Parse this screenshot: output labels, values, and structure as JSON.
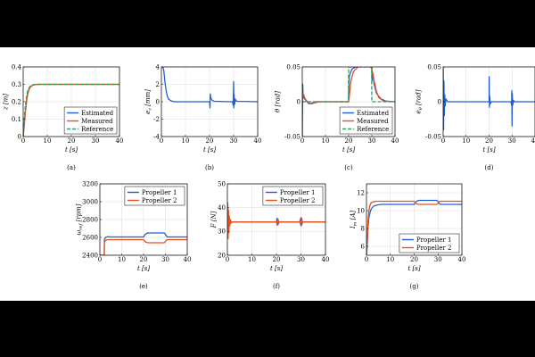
{
  "figure": {
    "background": "#ffffff",
    "letterbox": "#000000"
  },
  "colors": {
    "blue": "#1f5fd6",
    "red": "#e8521c",
    "green": "#2e9c5c",
    "grid": "#d9d9d9"
  },
  "chart_data": [
    {
      "id": "a",
      "caption": "(a)",
      "type": "line",
      "xlabel": "t [s]",
      "ylabel": "z [m]",
      "xlim": [
        0,
        40
      ],
      "ylim": [
        0,
        0.4
      ],
      "xticks": [
        0,
        10,
        20,
        30,
        40
      ],
      "xtick_labels": [
        "0",
        "10",
        "20",
        "30",
        "40"
      ],
      "yticks": [
        0,
        0.1,
        0.2,
        0.3,
        0.4
      ],
      "ytick_labels": [
        "0",
        "0.1",
        "0.2",
        "0.3",
        "0.4"
      ],
      "legend": "bottom-right",
      "grid": true,
      "series": [
        {
          "name": "Estimated",
          "color": "blue",
          "dash": "",
          "x": [
            0,
            0.5,
            1,
            1.5,
            2,
            2.5,
            3,
            4,
            5,
            6,
            8,
            10,
            40
          ],
          "y": [
            0,
            0.08,
            0.16,
            0.22,
            0.255,
            0.275,
            0.287,
            0.296,
            0.299,
            0.3,
            0.3,
            0.3,
            0.3
          ]
        },
        {
          "name": "Measured",
          "color": "red",
          "dash": "",
          "x": [
            0,
            0.5,
            1,
            1.5,
            2,
            2.5,
            3,
            4,
            5,
            6,
            8,
            10,
            40
          ],
          "y": [
            0,
            0.07,
            0.15,
            0.21,
            0.25,
            0.272,
            0.285,
            0.295,
            0.299,
            0.3,
            0.3,
            0.3,
            0.3
          ]
        },
        {
          "name": "Reference",
          "color": "green",
          "dash": "4,2",
          "x": [
            0,
            0.5,
            1,
            1.5,
            2,
            3,
            4,
            5,
            6,
            8,
            40
          ],
          "y": [
            0,
            0.11,
            0.19,
            0.24,
            0.27,
            0.291,
            0.297,
            0.299,
            0.3,
            0.3,
            0.3
          ]
        }
      ]
    },
    {
      "id": "b",
      "caption": "(b)",
      "type": "line",
      "xlabel": "t [s]",
      "ylabel": "e_z [mm]",
      "xlim": [
        0,
        40
      ],
      "ylim": [
        -4,
        4
      ],
      "xticks": [
        0,
        10,
        20,
        30,
        40
      ],
      "xtick_labels": [
        "0",
        "10",
        "20",
        "30",
        "40"
      ],
      "yticks": [
        -4,
        -2,
        0,
        2,
        4
      ],
      "ytick_labels": [
        "-4",
        "-2",
        "0",
        "2",
        "4"
      ],
      "legend": "none",
      "grid": true,
      "series": [
        {
          "name": "e_z",
          "color": "blue",
          "dash": "",
          "x": [
            0,
            0.3,
            0.6,
            1,
            1.5,
            2,
            2.5,
            3,
            4,
            5,
            6,
            20,
            20.2,
            20.3,
            20.6,
            21,
            21.5,
            22,
            29.5,
            29.8,
            30,
            30.1,
            30.2,
            30.4,
            30.7,
            31,
            31.5,
            40
          ],
          "y": [
            4,
            4,
            4,
            3.6,
            2.2,
            1.2,
            0.6,
            0.3,
            0.1,
            0.03,
            0,
            0,
            -0.7,
            0.9,
            0.4,
            0.2,
            0.1,
            0.05,
            0,
            -0.4,
            2.3,
            -0.7,
            0.8,
            -0.3,
            0.3,
            0.1,
            0.05,
            0
          ]
        }
      ]
    },
    {
      "id": "c",
      "caption": "(c)",
      "type": "line",
      "xlabel": "t [s]",
      "ylabel": "θ [rad]",
      "xlim": [
        0,
        40
      ],
      "ylim": [
        -0.05,
        0.05
      ],
      "xticks": [
        0,
        10,
        20,
        30,
        40
      ],
      "xtick_labels": [
        "0",
        "10",
        "20",
        "30",
        "40"
      ],
      "yticks": [
        -0.05,
        0,
        0.05
      ],
      "ytick_labels": [
        "-0.05",
        "0",
        "0.05"
      ],
      "legend": "bottom-right",
      "grid": true,
      "series": [
        {
          "name": "Estimated",
          "color": "blue",
          "dash": "",
          "x": [
            0,
            0.2,
            0.4,
            0.6,
            1,
            1.5,
            2,
            3,
            4,
            5,
            6,
            8,
            10,
            12,
            14,
            16,
            18,
            20,
            20.1,
            20.3,
            20.8,
            21.5,
            23,
            25,
            29.5,
            29.8,
            30,
            30.1,
            30.2,
            30.6,
            31,
            32,
            34,
            36,
            40
          ],
          "y": [
            -0.05,
            0.025,
            0.005,
            0.01,
            0.004,
            0.002,
            0,
            -0.003,
            -0.002,
            -0.001,
            0,
            0,
            0,
            0,
            0,
            0,
            0,
            0,
            0.02,
            0.037,
            0.042,
            0.047,
            0.05,
            0.051,
            0.051,
            0.048,
            0.055,
            0.03,
            0.042,
            0.035,
            0.025,
            0.012,
            0.004,
            0.001,
            0
          ]
        },
        {
          "name": "Measured",
          "color": "red",
          "dash": "",
          "x": [
            0,
            0.3,
            0.6,
            1,
            1.5,
            2,
            3,
            4,
            6,
            8,
            20,
            20.3,
            21,
            22,
            24,
            29.5,
            30,
            30.5,
            31,
            32,
            33,
            35,
            40
          ],
          "y": [
            0,
            0.012,
            0.01,
            0.006,
            0.003,
            0.001,
            -0.002,
            -0.003,
            -0.001,
            0,
            0,
            0.008,
            0.03,
            0.043,
            0.05,
            0.051,
            0.046,
            0.04,
            0.03,
            0.015,
            0.006,
            0.001,
            0
          ]
        },
        {
          "name": "Reference",
          "color": "green",
          "dash": "4,2",
          "x": [
            0,
            19.9,
            20,
            29.9,
            30,
            40
          ],
          "y": [
            0,
            0,
            0.05,
            0.05,
            0,
            0
          ]
        }
      ]
    },
    {
      "id": "d",
      "caption": "(d)",
      "type": "line",
      "xlabel": "t [s]",
      "ylabel": "e_θ [rad]",
      "xlim": [
        0,
        40
      ],
      "ylim": [
        -0.05,
        0.05
      ],
      "xticks": [
        0,
        10,
        20,
        30,
        40
      ],
      "xtick_labels": [
        "0",
        "10",
        "20",
        "30",
        "40"
      ],
      "yticks": [
        -0.05,
        0,
        0.05
      ],
      "ytick_labels": [
        "-0.05",
        "0",
        "0.05"
      ],
      "legend": "none",
      "grid": true,
      "series": [
        {
          "name": "e_θ",
          "color": "blue",
          "dash": "",
          "x": [
            0,
            0.2,
            0.35,
            0.5,
            0.7,
            0.9,
            1.2,
            1.6,
            2,
            3,
            20,
            20.05,
            20.15,
            20.3,
            20.5,
            21,
            29.5,
            29.8,
            29.9,
            30,
            30.1,
            30.3,
            30.6,
            31,
            40
          ],
          "y": [
            0.05,
            -0.04,
            0.03,
            -0.02,
            0.01,
            -0.006,
            0.004,
            0.002,
            0,
            0,
            0,
            0.036,
            -0.008,
            0.008,
            -0.003,
            0,
            0,
            -0.005,
            0.016,
            -0.035,
            0.012,
            -0.005,
            0.002,
            0,
            0
          ]
        }
      ]
    },
    {
      "id": "e",
      "caption": "(e)",
      "type": "line",
      "xlabel": "t [s]",
      "ylabel": "ω_ref [rpm]",
      "xlim": [
        0,
        40
      ],
      "ylim": [
        2400,
        3200
      ],
      "xticks": [
        0,
        10,
        20,
        30,
        40
      ],
      "xtick_labels": [
        "0",
        "10",
        "20",
        "30",
        "40"
      ],
      "yticks": [
        2400,
        2600,
        2800,
        3000,
        3200
      ],
      "ytick_labels": [
        "2400",
        "2600",
        "2800",
        "3000",
        "3200"
      ],
      "legend": "top-right",
      "grid": true,
      "series": [
        {
          "name": "Propeller 1",
          "color": "blue",
          "dash": "",
          "x": [
            0,
            2,
            2.1,
            2.6,
            3.5,
            5,
            20,
            20.5,
            21,
            22,
            29.5,
            30,
            30.5,
            31,
            40
          ],
          "y": [
            2400,
            2400,
            2580,
            2600,
            2607,
            2605,
            2605,
            2625,
            2640,
            2650,
            2650,
            2635,
            2615,
            2605,
            2605
          ]
        },
        {
          "name": "Propeller 2",
          "color": "red",
          "dash": "",
          "x": [
            0,
            2,
            2.1,
            2.6,
            3.5,
            5,
            20,
            20.5,
            21,
            22,
            29.5,
            30,
            30.5,
            31,
            40
          ],
          "y": [
            2400,
            2400,
            2550,
            2568,
            2575,
            2575,
            2575,
            2560,
            2548,
            2540,
            2540,
            2555,
            2570,
            2575,
            2575
          ]
        }
      ]
    },
    {
      "id": "f",
      "caption": "(f)",
      "type": "line",
      "xlabel": "t [s]",
      "ylabel": "F [N]",
      "xlim": [
        0,
        40
      ],
      "ylim": [
        20,
        50
      ],
      "xticks": [
        0,
        10,
        20,
        30,
        40
      ],
      "xtick_labels": [
        "0",
        "10",
        "20",
        "30",
        "40"
      ],
      "yticks": [
        20,
        30,
        40,
        50
      ],
      "ytick_labels": [
        "20",
        "30",
        "40",
        "50"
      ],
      "legend": "top-right",
      "grid": true,
      "series": [
        {
          "name": "Propeller 1",
          "color": "blue",
          "dash": "",
          "x": [
            0,
            0.15,
            0.3,
            0.45,
            0.6,
            0.8,
            1,
            1.3,
            1.6,
            2,
            20,
            20.3,
            20.6,
            21,
            29.5,
            30,
            30.3,
            30.6,
            40
          ],
          "y": [
            34,
            41,
            28,
            38,
            30,
            36,
            32.5,
            34.8,
            33.6,
            34,
            34,
            35.5,
            32.8,
            34,
            34,
            35.8,
            32.6,
            34,
            34
          ]
        },
        {
          "name": "Propeller 2",
          "color": "red",
          "dash": "",
          "x": [
            0,
            0.15,
            0.3,
            0.45,
            0.6,
            0.8,
            1,
            1.3,
            1.6,
            2,
            20,
            20.3,
            20.6,
            21,
            29.5,
            30,
            30.3,
            30.6,
            40
          ],
          "y": [
            34,
            42,
            27,
            39,
            29.5,
            36.5,
            32.2,
            35,
            33.5,
            34,
            34,
            32.6,
            35.3,
            34,
            34,
            32.4,
            35.6,
            34,
            34
          ]
        }
      ]
    },
    {
      "id": "g",
      "caption": "(g)",
      "type": "line",
      "xlabel": "t [s]",
      "ylabel": "I_m [A]",
      "xlim": [
        0,
        40
      ],
      "ylim": [
        5,
        13
      ],
      "xticks": [
        0,
        10,
        20,
        30,
        40
      ],
      "xtick_labels": [
        "0",
        "10",
        "20",
        "30",
        "40"
      ],
      "yticks": [
        6,
        8,
        10,
        12
      ],
      "ytick_labels": [
        "6",
        "8",
        "10",
        "12"
      ],
      "legend": "bottom-right",
      "grid": true,
      "series": [
        {
          "name": "Propeller 1",
          "color": "blue",
          "dash": "",
          "x": [
            0,
            0.3,
            0.6,
            1,
            1.5,
            2,
            3,
            4,
            6,
            20,
            20.5,
            21,
            22,
            29.5,
            30,
            30.5,
            31,
            40
          ],
          "y": [
            5,
            6,
            8,
            9.2,
            9.8,
            10.2,
            10.5,
            10.6,
            10.7,
            10.7,
            10.9,
            11.05,
            11.15,
            11.15,
            11.0,
            10.8,
            10.7,
            10.7
          ]
        },
        {
          "name": "Propeller 2",
          "color": "red",
          "dash": "",
          "x": [
            0,
            0.3,
            0.6,
            1,
            1.5,
            2,
            3,
            4,
            6,
            20,
            20.5,
            21,
            22,
            29.5,
            30,
            30.5,
            31,
            40
          ],
          "y": [
            5,
            6.5,
            8.8,
            10,
            10.6,
            10.9,
            11.0,
            11.05,
            11.05,
            11.05,
            10.85,
            10.75,
            10.7,
            10.7,
            10.85,
            11.0,
            11.05,
            11.05
          ]
        }
      ]
    }
  ]
}
